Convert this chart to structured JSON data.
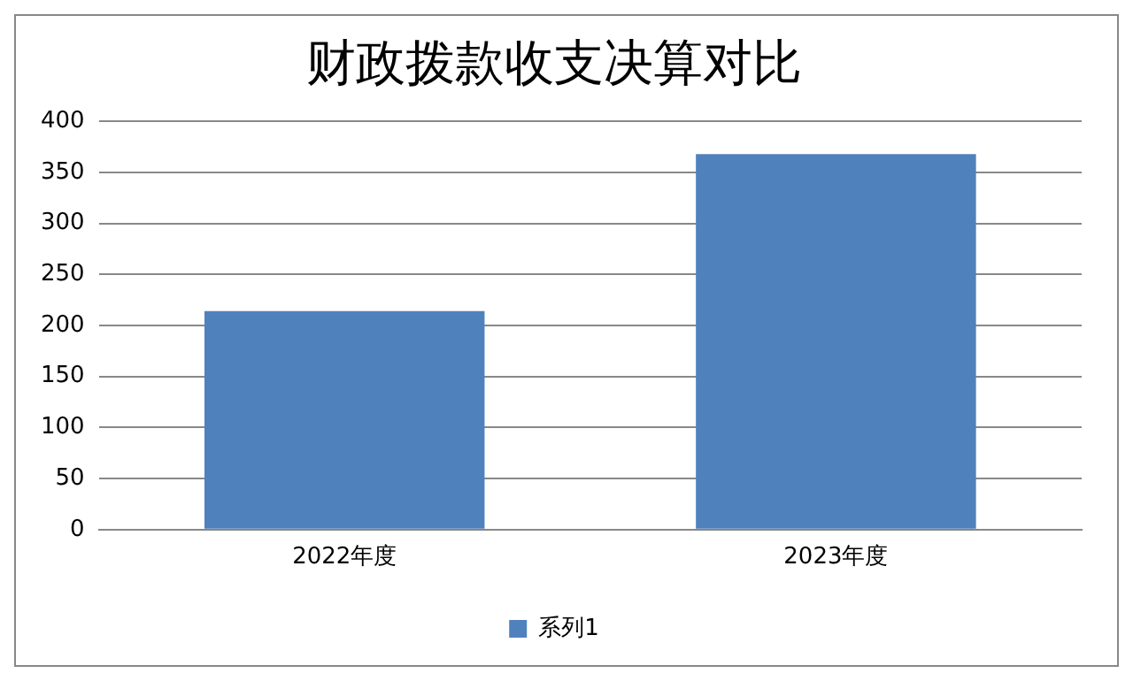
{
  "chart_data": {
    "type": "bar",
    "title": "财政拨款收支决算对比",
    "categories": [
      "2022年度",
      "2023年度"
    ],
    "series": [
      {
        "name": "系列1",
        "color": "#4f81bd",
        "values": [
          214,
          368
        ]
      }
    ],
    "ylim": [
      0,
      400
    ],
    "yticks": [
      0,
      50,
      100,
      150,
      200,
      250,
      300,
      350,
      400
    ],
    "grid": "y",
    "legend": "bottom"
  }
}
